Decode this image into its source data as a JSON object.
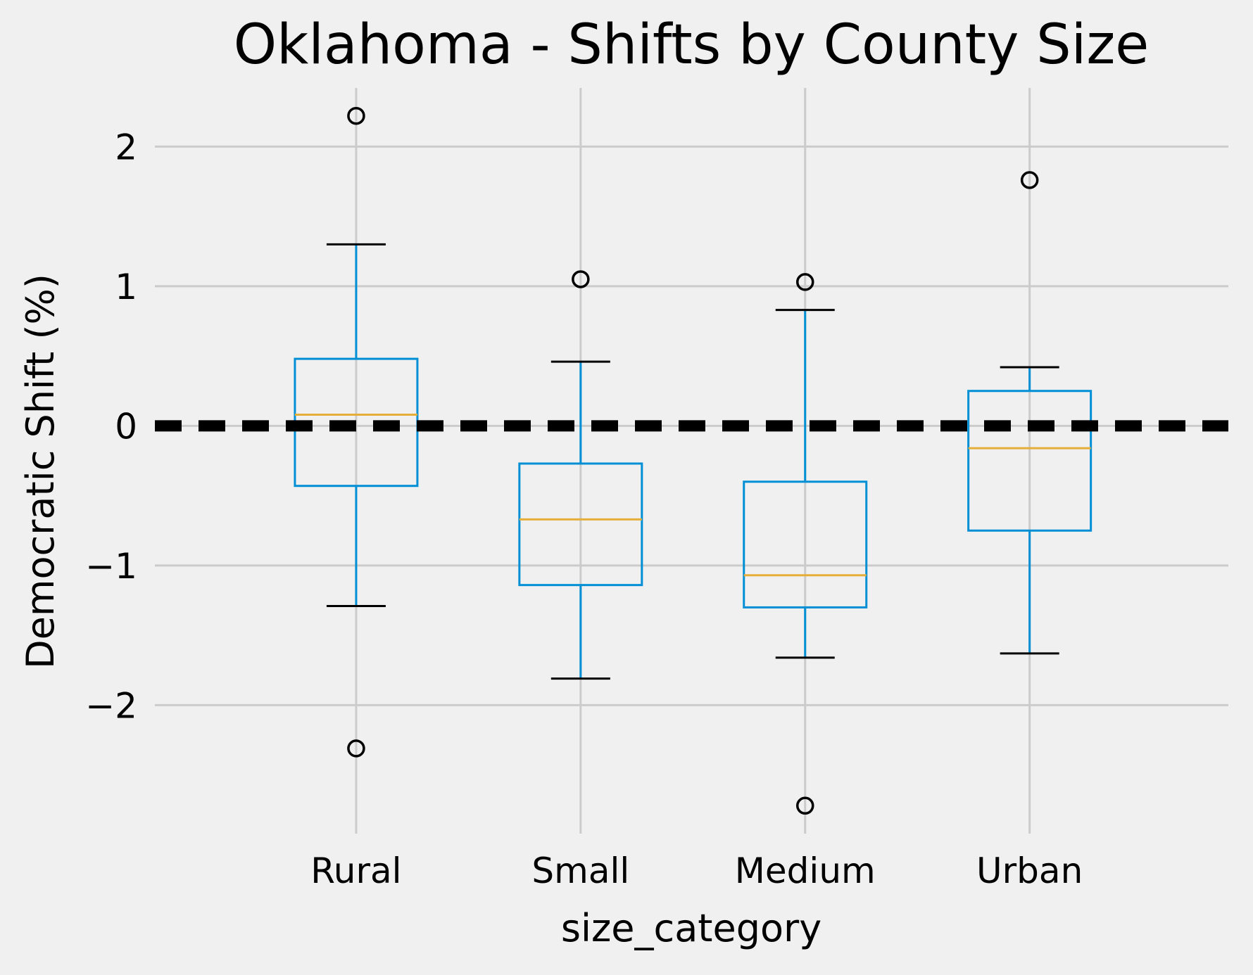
{
  "chart_data": {
    "type": "box",
    "title": "Oklahoma - Shifts by County Size",
    "xlabel": "size_category",
    "ylabel": "Democratic Shift (%)",
    "ylim": [
      -2.92,
      2.42
    ],
    "yticks": [
      -2,
      -1,
      0,
      1,
      2
    ],
    "ytick_labels": [
      "−2",
      "−1",
      "0",
      "1",
      "2"
    ],
    "categories": [
      "Rural",
      "Small",
      "Medium",
      "Urban"
    ],
    "grid": true,
    "reference_line": {
      "y": 0,
      "style": "dashed",
      "color": "#000000"
    },
    "boxes": [
      {
        "category": "Rural",
        "whisker_low": -1.29,
        "q1": -0.43,
        "median": 0.08,
        "q3": 0.48,
        "whisker_high": 1.3,
        "outliers": [
          2.22,
          -2.31
        ]
      },
      {
        "category": "Small",
        "whisker_low": -1.81,
        "q1": -1.14,
        "median": -0.67,
        "q3": -0.27,
        "whisker_high": 0.46,
        "outliers": [
          1.05
        ]
      },
      {
        "category": "Medium",
        "whisker_low": -1.66,
        "q1": -1.3,
        "median": -1.07,
        "q3": -0.4,
        "whisker_high": 0.83,
        "outliers": [
          1.03,
          -2.72
        ]
      },
      {
        "category": "Urban",
        "whisker_low": -1.63,
        "q1": -0.75,
        "median": -0.16,
        "q3": 0.25,
        "whisker_high": 0.42,
        "outliers": [
          1.76
        ]
      }
    ],
    "colors": {
      "background": "#f0f0f0",
      "grid": "#cbcbcb",
      "box": "#008fd5",
      "median": "#e5ae38",
      "whisker_cap": "#000000",
      "outlier": "#000000",
      "reference_line": "#000000"
    }
  }
}
